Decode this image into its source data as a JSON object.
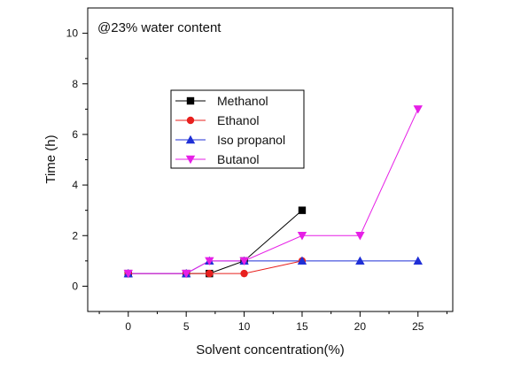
{
  "chart_data": {
    "type": "line",
    "title": "",
    "annotation": "@23% water content",
    "xlabel": "Solvent concentration(%)",
    "ylabel": "Time (h)",
    "xlim": [
      -3.5,
      28
    ],
    "ylim": [
      -1,
      11
    ],
    "xticks": [
      0,
      5,
      10,
      15,
      20,
      25
    ],
    "yticks": [
      0,
      2,
      4,
      6,
      8,
      10
    ],
    "grid": false,
    "legend_position": "upper-left",
    "series": [
      {
        "name": "Methanol",
        "color": "#000000",
        "marker": "square",
        "x": [
          0,
          5,
          7,
          10,
          15
        ],
        "y": [
          0.5,
          0.5,
          0.5,
          1,
          3
        ]
      },
      {
        "name": "Ethanol",
        "color": "#e8201e",
        "marker": "circle",
        "x": [
          0,
          5,
          7,
          10,
          15
        ],
        "y": [
          0.5,
          0.5,
          0.5,
          0.5,
          1
        ]
      },
      {
        "name": "Iso propanol",
        "color": "#1f2fd6",
        "marker": "triangle-up",
        "x": [
          0,
          5,
          7,
          10,
          15,
          20,
          25
        ],
        "y": [
          0.5,
          0.5,
          1,
          1,
          1,
          1,
          1
        ]
      },
      {
        "name": "Butanol",
        "color": "#e61fe6",
        "marker": "triangle-down",
        "x": [
          0,
          5,
          7,
          10,
          15,
          20,
          25
        ],
        "y": [
          0.5,
          0.5,
          1,
          1,
          2,
          2,
          7
        ]
      }
    ]
  }
}
